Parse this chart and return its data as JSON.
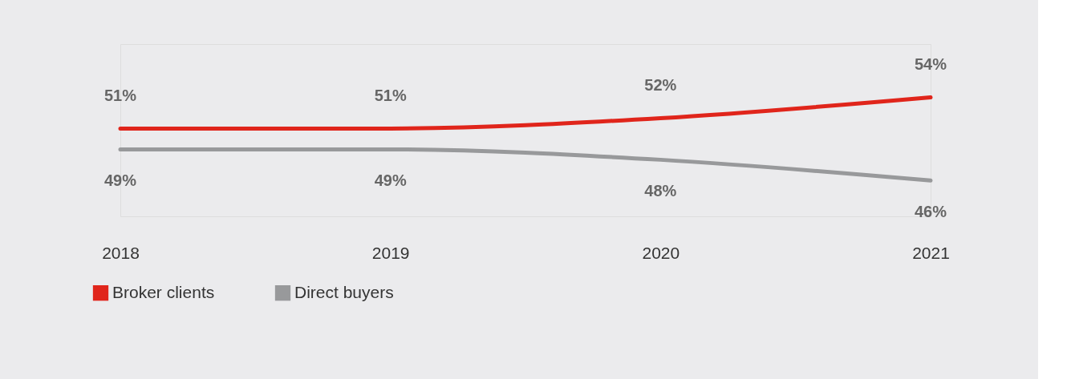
{
  "chart_data": {
    "type": "line",
    "categories": [
      "2018",
      "2019",
      "2020",
      "2021"
    ],
    "series": [
      {
        "name": "Broker clients",
        "color": "#e0251b",
        "values": [
          51,
          51,
          52,
          54
        ],
        "value_labels": [
          "51%",
          "51%",
          "52%",
          "54%"
        ]
      },
      {
        "name": "Direct buyers",
        "color": "#98999b",
        "values": [
          49,
          49,
          48,
          46
        ],
        "value_labels": [
          "49%",
          "49%",
          "48%",
          "46%"
        ]
      }
    ],
    "legend": "bottom left",
    "grid": false,
    "marker": "none",
    "line_style": "solid"
  }
}
